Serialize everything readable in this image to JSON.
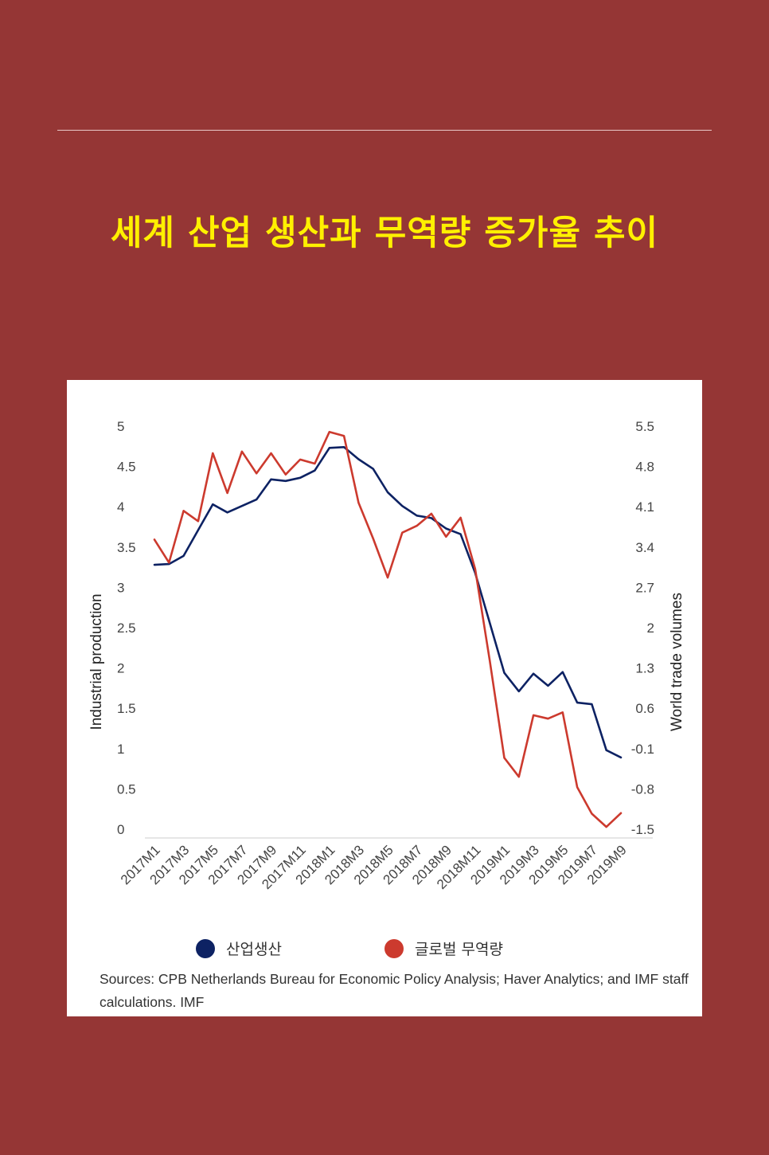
{
  "page": {
    "title": "세계 산업 생산과 무역량 증가율 추이"
  },
  "source_note": "Sources: CPB Netherlands Bureau for Economic Policy Analysis; Haver Analytics; and IMF staff calculations.",
  "source_credit": "IMF",
  "chart_data": {
    "type": "line",
    "title": "",
    "x": [
      "2017M1",
      "2017M2",
      "2017M3",
      "2017M4",
      "2017M5",
      "2017M6",
      "2017M7",
      "2017M8",
      "2017M9",
      "2017M10",
      "2017M11",
      "2017M12",
      "2018M1",
      "2018M2",
      "2018M3",
      "2018M4",
      "2018M5",
      "2018M6",
      "2018M7",
      "2018M8",
      "2018M9",
      "2018M10",
      "2018M11",
      "2018M12",
      "2019M1",
      "2019M2",
      "2019M3",
      "2019M4",
      "2019M5",
      "2019M6",
      "2019M7",
      "2019M8",
      "2019M9"
    ],
    "x_tick_labels": [
      "2017M1",
      "2017M3",
      "2017M5",
      "2017M7",
      "2017M9",
      "2017M11",
      "2018M1",
      "2018M3",
      "2018M5",
      "2018M7",
      "2018M9",
      "2018M11",
      "2019M1",
      "2019M3",
      "2019M5",
      "2019M7",
      "2019M9"
    ],
    "y_left": {
      "label": "Industrial production",
      "range": [
        0,
        5
      ],
      "ticks": [
        "0",
        "0.5",
        "1",
        "1.5",
        "2",
        "2.5",
        "3",
        "3.5",
        "4",
        "4.5",
        "5"
      ]
    },
    "y_right": {
      "label": "World trade volumes",
      "range": [
        -1.5,
        5.5
      ],
      "ticks": [
        "-1.5",
        "-0.8",
        "-0.1",
        "0.6",
        "1.3",
        "2",
        "2.7",
        "3.4",
        "4.1",
        "4.8",
        "5.5"
      ]
    },
    "series": [
      {
        "name": "산업생산",
        "axis": "left",
        "color": "#0d2263",
        "values": [
          3.28,
          3.29,
          3.39,
          3.71,
          4.03,
          3.93,
          4.01,
          4.09,
          4.34,
          4.32,
          4.36,
          4.45,
          4.73,
          4.74,
          4.59,
          4.47,
          4.18,
          4.01,
          3.89,
          3.86,
          3.73,
          3.66,
          3.18,
          2.56,
          1.94,
          1.71,
          1.93,
          1.78,
          1.95,
          1.57,
          1.55,
          0.98,
          0.89
        ]
      },
      {
        "name": "글로벌 무역량",
        "axis": "right",
        "color": "#cc3a2e",
        "values": [
          3.53,
          3.13,
          4.03,
          3.85,
          5.03,
          4.34,
          5.06,
          4.68,
          5.03,
          4.66,
          4.92,
          4.85,
          5.4,
          5.33,
          4.17,
          3.55,
          2.87,
          3.65,
          3.77,
          3.98,
          3.58,
          3.91,
          3.02,
          1.43,
          -0.26,
          -0.59,
          0.48,
          0.42,
          0.53,
          -0.77,
          -1.23,
          -1.46,
          -1.22
        ]
      }
    ],
    "legend_position": "bottom",
    "grid": false
  }
}
